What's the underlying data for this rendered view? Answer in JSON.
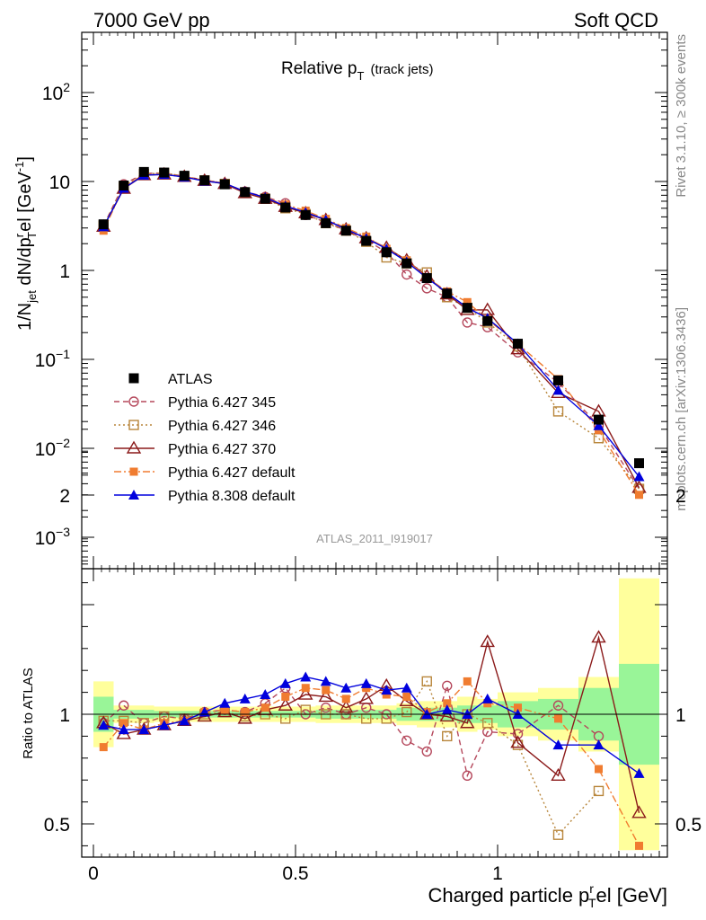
{
  "header": {
    "left": "7000 GeV pp",
    "right": "Soft QCD"
  },
  "side": {
    "rivet": "Rivet 3.1.10, ≥ 300k events",
    "mcplots": "mcplots.cern.ch [arXiv:1306.3436]"
  },
  "chart_data": {
    "type": "line",
    "title_main": "Relative p",
    "title_sub": "T",
    "title_paren": "(track jets)",
    "analysis_id": "ATLAS_2011_I919017",
    "ylabel_main": "1/N",
    "ylabel_sub1": "jet",
    "ylabel_mid": " dN/dp",
    "ylabel_sup": "r",
    "ylabel_sub2": "T",
    "ylabel_end": "el [GeV",
    "ylabel_exp": "-1",
    "ylabel_close": "]",
    "ratio_ylabel": "Ratio to ATLAS",
    "xlabel_main": "Charged particle p",
    "xlabel_sup": "r",
    "xlabel_sub": "T",
    "xlabel_end": "el [GeV]",
    "xlim": [
      -0.02,
      1.42
    ],
    "ylim_main": [
      0.0004,
      500
    ],
    "ylim_ratio": [
      0.35,
      2.35
    ],
    "yscale_main": "log",
    "legend_position": "bottom-left",
    "x_ticks": [
      "0",
      "0.5",
      "1"
    ],
    "y_ticks_main": [
      "10^-3",
      "10^-2",
      "10^-1",
      "1",
      "10",
      "10^2"
    ],
    "y_ticks_ratio": [
      "0.5",
      "1",
      "2"
    ],
    "x": [
      0.025,
      0.075,
      0.125,
      0.175,
      0.225,
      0.275,
      0.325,
      0.375,
      0.425,
      0.475,
      0.525,
      0.575,
      0.625,
      0.675,
      0.725,
      0.775,
      0.825,
      0.875,
      0.925,
      0.975,
      1.05,
      1.15,
      1.25,
      1.35
    ],
    "data": {
      "name": "ATLAS",
      "color": "#000000",
      "values": [
        3.3,
        9.0,
        12.8,
        12.6,
        11.6,
        10.3,
        9.3,
        7.6,
        6.4,
        5.1,
        4.2,
        3.4,
        2.8,
        2.15,
        1.6,
        1.2,
        0.82,
        0.55,
        0.38,
        0.27,
        0.15,
        0.058,
        0.021,
        0.0068
      ]
    },
    "series": [
      {
        "name": "Pythia 6.427 345",
        "color": "#b5485c",
        "marker": "circle-open",
        "dash": "6,4",
        "values": [
          3.2,
          9.3,
          12.3,
          12.5,
          11.4,
          10.4,
          9.5,
          7.7,
          6.7,
          5.7,
          4.2,
          3.5,
          2.8,
          2.2,
          1.6,
          0.9,
          0.63,
          0.5,
          0.26,
          0.23,
          0.12,
          0.055,
          0.018,
          0.0035
        ],
        "ratio": [
          0.96,
          1.04,
          0.96,
          0.99,
          0.98,
          1.01,
          1.02,
          1.01,
          1.05,
          1.12,
          1.0,
          1.03,
          1.0,
          1.03,
          1.0,
          0.88,
          0.83,
          1.13,
          0.72,
          0.92,
          0.91,
          1.04,
          0.9,
          null
        ]
      },
      {
        "name": "Pythia 6.427 346",
        "color": "#b8863b",
        "marker": "square-open",
        "dash": "2,3",
        "values": [
          3.2,
          8.8,
          12.1,
          12.5,
          11.4,
          10.3,
          9.4,
          7.5,
          6.4,
          5.0,
          4.3,
          3.4,
          2.8,
          2.1,
          1.4,
          1.2,
          0.95,
          0.5,
          0.38,
          0.26,
          0.14,
          0.026,
          0.013,
          0.0035
        ],
        "ratio": [
          0.97,
          0.97,
          0.96,
          0.99,
          0.98,
          1.0,
          1.01,
          0.99,
          1.0,
          0.98,
          1.02,
          1.0,
          1.0,
          0.98,
          0.98,
          1.01,
          1.15,
          0.9,
          1.0,
          0.96,
          0.86,
          0.45,
          0.65,
          null
        ]
      },
      {
        "name": "Pythia 6.427 370",
        "color": "#8b1a1a",
        "marker": "triangle-open",
        "dash": "",
        "values": [
          3.1,
          8.3,
          11.8,
          12.0,
          11.3,
          10.2,
          9.4,
          7.4,
          6.4,
          5.2,
          4.4,
          3.7,
          2.9,
          2.3,
          1.8,
          1.3,
          0.86,
          0.54,
          0.36,
          0.36,
          0.13,
          0.042,
          0.026,
          0.0036
        ],
        "ratio": [
          0.96,
          0.91,
          0.93,
          0.95,
          0.97,
          0.99,
          1.01,
          0.98,
          1.02,
          1.04,
          1.09,
          1.08,
          1.03,
          1.07,
          1.13,
          1.06,
          1.0,
          0.99,
          0.96,
          1.33,
          0.87,
          0.72,
          1.35,
          0.55
        ]
      },
      {
        "name": "Pythia 6.427 default",
        "color": "#f07c30",
        "marker": "square-filled",
        "dash": "8,3,2,3",
        "values": [
          2.8,
          8.7,
          11.9,
          12.1,
          11.2,
          10.4,
          9.5,
          7.7,
          6.6,
          5.5,
          4.7,
          3.8,
          3.0,
          2.4,
          1.75,
          1.3,
          0.83,
          0.58,
          0.44,
          0.28,
          0.15,
          0.06,
          0.016,
          0.003
        ],
        "ratio": [
          0.85,
          0.96,
          0.93,
          0.96,
          0.97,
          1.01,
          1.02,
          1.01,
          1.03,
          1.08,
          1.12,
          1.11,
          1.07,
          1.12,
          1.09,
          1.08,
          1.01,
          1.05,
          1.15,
          1.05,
          1.03,
          0.98,
          0.75,
          0.4
        ]
      },
      {
        "name": "Pythia 8.308 default",
        "color": "#0000dd",
        "marker": "triangle-filled",
        "dash": "",
        "values": [
          3.1,
          8.4,
          11.8,
          12.0,
          11.2,
          10.1,
          9.5,
          7.7,
          6.6,
          5.3,
          4.5,
          3.7,
          2.9,
          2.3,
          1.75,
          1.25,
          0.82,
          0.56,
          0.38,
          0.29,
          0.15,
          0.045,
          0.018,
          0.0048
        ],
        "ratio": [
          0.95,
          0.93,
          0.93,
          0.95,
          0.97,
          1.01,
          1.05,
          1.07,
          1.09,
          1.14,
          1.17,
          1.15,
          1.12,
          1.14,
          1.11,
          1.12,
          1.0,
          1.02,
          1.0,
          1.07,
          1.0,
          0.86,
          0.86,
          0.73
        ]
      }
    ],
    "ratio_bands": {
      "green_halfwidth": [
        0.08,
        0.02,
        0.02,
        0.015,
        0.015,
        0.015,
        0.015,
        0.015,
        0.015,
        0.015,
        0.015,
        0.02,
        0.02,
        0.02,
        0.02,
        0.03,
        0.03,
        0.03,
        0.04,
        0.04,
        0.06,
        0.07,
        0.12,
        0.23
      ],
      "yellow_halfwidth": [
        0.15,
        0.04,
        0.04,
        0.035,
        0.035,
        0.035,
        0.035,
        0.035,
        0.035,
        0.035,
        0.035,
        0.04,
        0.04,
        0.04,
        0.04,
        0.05,
        0.06,
        0.06,
        0.08,
        0.07,
        0.1,
        0.12,
        0.17,
        0.62
      ],
      "green_color": "#99f598",
      "yellow_color": "#ffff9c"
    }
  }
}
